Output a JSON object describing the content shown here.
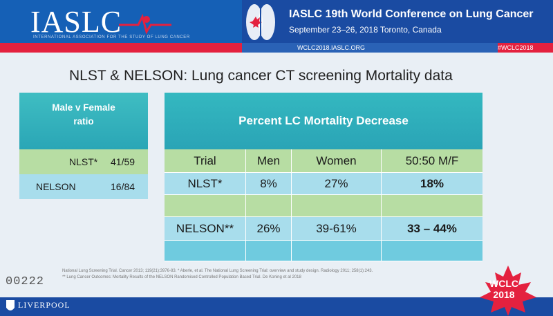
{
  "header": {
    "logo": "IASLC",
    "logo_subtitle": "INTERNATIONAL ASSOCIATION FOR THE STUDY OF LUNG CANCER",
    "conference_title": "IASLC 19th World Conference on Lung Cancer",
    "conference_date": "September 23–26, 2018  Toronto, Canada",
    "url": "WCLC2018.IASLC.ORG",
    "hashtag": "#WCLC2018"
  },
  "slide": {
    "title": "NLST & NELSON: Lung cancer CT screening Mortality data"
  },
  "left_table": {
    "header_line1": "Male v Female",
    "header_line2": "ratio",
    "rows": [
      {
        "trial": "NLST*",
        "ratio": "41/59"
      },
      {
        "trial": "NELSON",
        "ratio": "16/84"
      }
    ]
  },
  "right_table": {
    "header": "Percent LC Mortality Decrease",
    "columns": [
      "Trial",
      "Men",
      "Women",
      "50:50 M/F"
    ],
    "rows": [
      {
        "trial": "NLST*",
        "men": "8%",
        "women": "27%",
        "mf": "18%"
      },
      {
        "trial": "",
        "men": "",
        "women": "",
        "mf": ""
      },
      {
        "trial": "NELSON**",
        "men": "26%",
        "women": "39-61%",
        "mf": "33 – 44%"
      },
      {
        "trial": "",
        "men": "",
        "women": "",
        "mf": ""
      }
    ]
  },
  "footer": {
    "counter": "00222",
    "footnote_line1": "National Lung Screening Trial. Cancer 2013; 119(21):3976-83. * Aberle, et al. The National Lung Screening Trial: overview and study design. Radiology 2011; 258(1):243.",
    "footnote_line2": "** Lung Cancer Outcomes: Mortality Results of the NELSON Randomised Controlled Population Based Trial. De Koning et al 2018",
    "institution": "LIVERPOOL",
    "badge_line1": "WCLC",
    "badge_line2": "2018"
  },
  "colors": {
    "header_blue": "#1a4ba2",
    "accent_red": "#e4213f",
    "teal": "#2aa6b6",
    "green_row": "#b7dda3",
    "blue_row": "#a8ddec"
  }
}
